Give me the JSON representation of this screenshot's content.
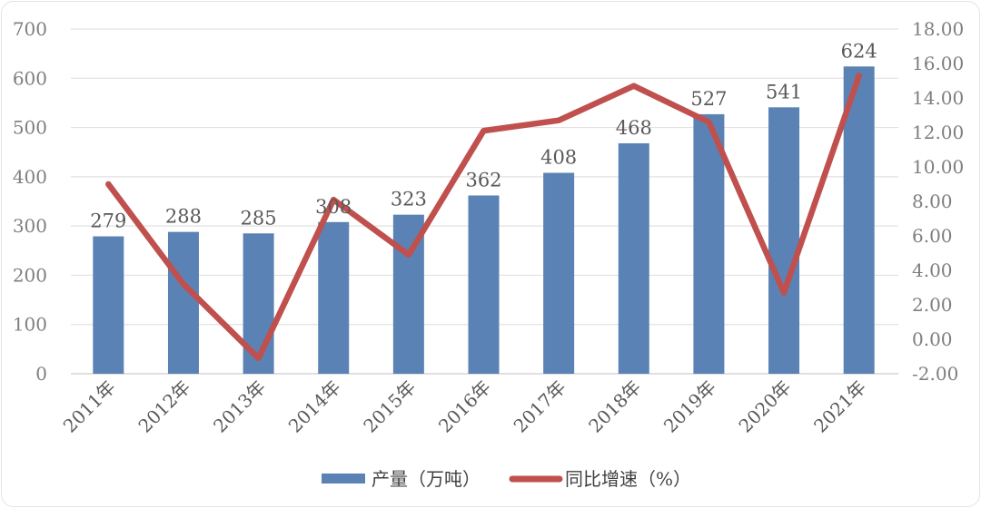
{
  "chart_data": {
    "type": "combo-bar-line",
    "title": "",
    "categories": [
      "2011年",
      "2012年",
      "2013年",
      "2014年",
      "2015年",
      "2016年",
      "2017年",
      "2018年",
      "2019年",
      "2020年",
      "2021年"
    ],
    "series": [
      {
        "name": "产量（万吨）",
        "type": "bar",
        "axis": "left",
        "color": "#5B82B4",
        "values": [
          279,
          288,
          285,
          308,
          323,
          362,
          408,
          468,
          527,
          541,
          624
        ],
        "data_labels_shown": true
      },
      {
        "name": "同比增速（%）",
        "type": "line",
        "axis": "right",
        "color": "#C0504D",
        "values": [
          9.0,
          3.2,
          -1.1,
          8.1,
          4.9,
          12.1,
          12.7,
          14.7,
          12.6,
          2.7,
          15.3
        ],
        "data_labels_shown": false
      }
    ],
    "left_axis": {
      "min": 0,
      "max": 700,
      "step": 100,
      "tick_labels": [
        "0",
        "100",
        "200",
        "300",
        "400",
        "500",
        "600",
        "700"
      ]
    },
    "right_axis": {
      "min": -2,
      "max": 18,
      "step": 2,
      "tick_labels": [
        "-2.00",
        "0.00",
        "2.00",
        "4.00",
        "6.00",
        "8.00",
        "10.00",
        "12.00",
        "14.00",
        "16.00",
        "18.00"
      ]
    },
    "grid": "horizontal",
    "gridline_color": "#e2e2e2",
    "axis_line_color": "#d6d6d6",
    "axis_text_color": "#7f7f7f",
    "data_label_color": "#595959",
    "legend_position": "bottom",
    "legend": [
      {
        "label": "产量（万吨）",
        "swatch": "bar",
        "color": "#5B82B4"
      },
      {
        "label": "同比增速（%）",
        "swatch": "line",
        "color": "#C0504D"
      }
    ]
  }
}
